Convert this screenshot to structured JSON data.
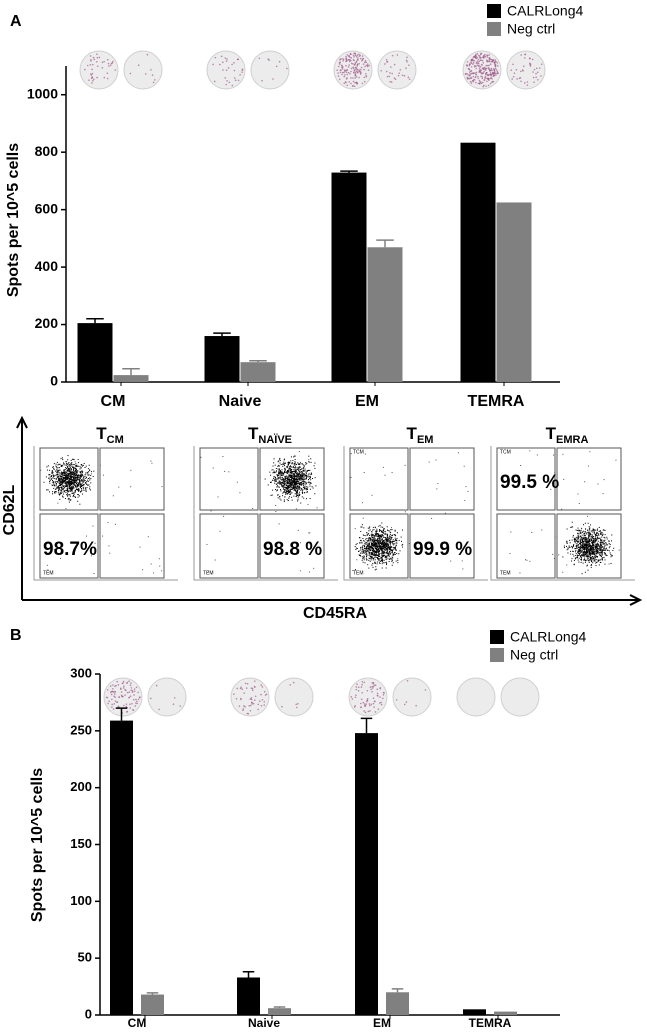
{
  "panel_labels": [
    "A",
    "B"
  ],
  "chart_data": [
    {
      "type": "bar",
      "y_label": "Spots per 10^5 cells",
      "categories": [
        "CM",
        "Naive",
        "EM",
        "TEMRA"
      ],
      "series": [
        {
          "name": "CALRLong4",
          "color": "#000000",
          "values": [
            205,
            160,
            729,
            833
          ],
          "errors": [
            15,
            10,
            5,
            null
          ]
        },
        {
          "name": "Neg ctrl",
          "color": "#808080",
          "values": [
            24,
            69,
            469,
            625
          ],
          "errors": [
            22,
            5,
            25,
            null
          ]
        }
      ],
      "ylim": [
        0,
        1100
      ],
      "yticks": [
        0,
        200,
        400,
        600,
        800,
        1000
      ]
    },
    {
      "type": "bar",
      "y_label": "Spots per 10^5 cells",
      "categories": [
        "CM",
        "Naive",
        "EM",
        "TEMRA"
      ],
      "series": [
        {
          "name": "CALRLong4",
          "color": "#000000",
          "values": [
            259,
            33,
            248,
            5
          ],
          "errors": [
            11,
            5,
            13,
            null
          ]
        },
        {
          "name": "Neg ctrl",
          "color": "#808080",
          "values": [
            18,
            6,
            20,
            3
          ],
          "errors": [
            1.5,
            1,
            3,
            null
          ]
        }
      ],
      "ylim": [
        0,
        300
      ],
      "yticks": [
        0,
        50,
        100,
        150,
        200,
        250,
        300
      ]
    }
  ],
  "flow": {
    "y_label": "CD62L",
    "x_label": "CD45RA",
    "panels": [
      {
        "title": "T",
        "sub": "CM",
        "percent": "98.7%",
        "gates": [
          "TEM"
        ]
      },
      {
        "title": "T",
        "sub": "NAÏVE",
        "percent": "98.8 %",
        "gates": [
          "TEM"
        ]
      },
      {
        "title": "T",
        "sub": "EM",
        "percent": "99.9 %",
        "gates": [
          "TCM",
          "TEM"
        ]
      },
      {
        "title": "T",
        "sub": "EMRA",
        "percent": "99.5 %",
        "gates": [
          "TCM",
          "TEM"
        ]
      }
    ]
  }
}
